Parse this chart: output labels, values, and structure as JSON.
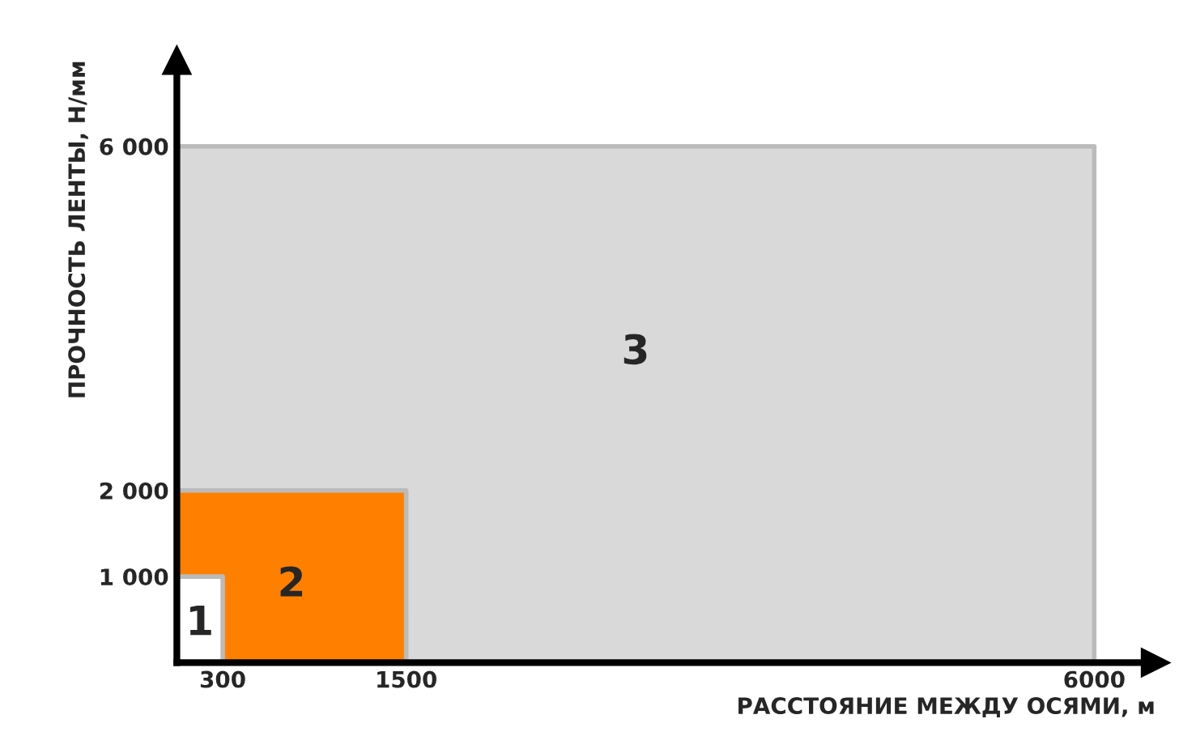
{
  "chart_data": {
    "type": "area",
    "xlabel": "РАССТОЯНИЕ МЕЖДУ ОСЯМИ, м",
    "ylabel": "ПРОЧНОСТЬ ЛЕНТЫ, Н/мм",
    "series": [
      {
        "x": [
          0,
          6000
        ],
        "values": [
          6000,
          6000
        ],
        "color": "#d9d9d9"
      },
      {
        "x": [
          0,
          1500
        ],
        "values": [
          2000,
          2000
        ],
        "color": "#ff8000"
      },
      {
        "x": [
          0,
          300
        ],
        "values": [
          1000,
          1000
        ],
        "color": "#ffffff"
      }
    ],
    "xlim": [
      0,
      6400
    ],
    "ylim": [
      0,
      7000
    ],
    "xticks": [
      300,
      1500,
      6000
    ],
    "yticks": [
      {
        "value": 1000,
        "label": "1 000"
      },
      {
        "value": 2000,
        "label": "2 000"
      },
      {
        "value": 6000,
        "label": "6 000"
      }
    ],
    "grid": false,
    "legend": false,
    "annotations": [
      "3",
      "2",
      "1"
    ]
  }
}
